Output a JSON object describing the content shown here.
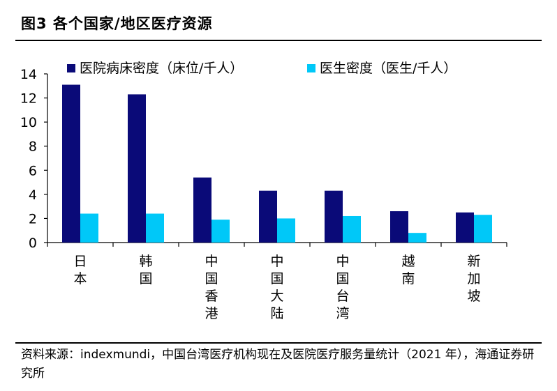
{
  "header": {
    "title": "图3   各个国家/地区医疗资源"
  },
  "chart_data": {
    "type": "bar",
    "title": "",
    "xlabel": "",
    "ylabel": "",
    "ylim": [
      0,
      14
    ],
    "yticks": [
      0,
      2,
      4,
      6,
      8,
      10,
      12,
      14
    ],
    "grid": false,
    "legend_position": "top",
    "categories": [
      "日本",
      "韩国",
      "中国香港",
      "中国大陆",
      "中国台湾",
      "越南",
      "新加坡"
    ],
    "series": [
      {
        "name": "医院病床密度（床位/千人）",
        "color": "#0a0a78",
        "values": [
          13.1,
          12.3,
          5.4,
          4.3,
          4.3,
          2.6,
          2.5
        ]
      },
      {
        "name": "医生密度（医生/千人）",
        "color": "#00c8f8",
        "values": [
          2.4,
          2.4,
          1.9,
          2.0,
          2.2,
          0.8,
          2.3
        ]
      }
    ]
  },
  "footer": {
    "source": "资料来源：indexmundi，中国台湾医疗机构现在及医院医疗服务量统计（2021 年），海通证券研究所"
  }
}
